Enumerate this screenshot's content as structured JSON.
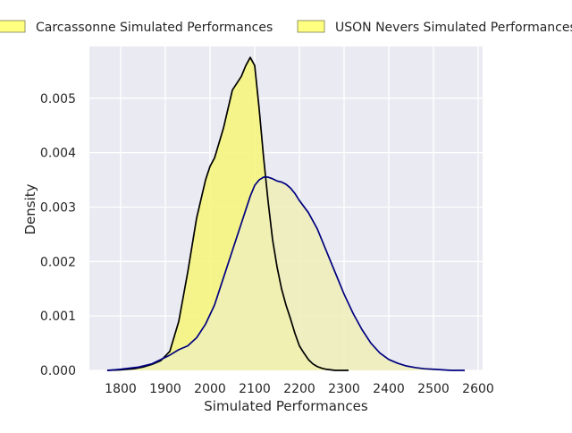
{
  "chart_data": {
    "type": "area",
    "title": "",
    "xlabel": "Simulated Performances",
    "ylabel": "Density",
    "xlim": [
      1730,
      2610
    ],
    "ylim": [
      0,
      0.00595
    ],
    "xticks": [
      1800,
      1900,
      2000,
      2100,
      2200,
      2300,
      2400,
      2500,
      2600
    ],
    "yticks": [
      0,
      0.001,
      0.002,
      0.003,
      0.004,
      0.005
    ],
    "ytick_labels": [
      "0.000",
      "0.001",
      "0.002",
      "0.003",
      "0.004",
      "0.005"
    ],
    "grid": true,
    "legend_position": "top",
    "colors": {
      "plot_background": "#eaeaf2",
      "grid": "#ffffff",
      "carcassonne_fill": "#f5f580",
      "carcassonne_line": "#000000",
      "uson_fill": "#eeeeb8",
      "uson_line": "#000080",
      "legend_swatch": "#ffff80"
    },
    "series": [
      {
        "name": "Carcassonne Simulated Performances",
        "x": [
          1770,
          1800,
          1830,
          1850,
          1870,
          1890,
          1910,
          1930,
          1950,
          1970,
          1990,
          2000,
          2010,
          2030,
          2050,
          2070,
          2080,
          2090,
          2100,
          2110,
          2120,
          2130,
          2140,
          2150,
          2160,
          2170,
          2180,
          2190,
          2200,
          2210,
          2220,
          2230,
          2240,
          2250,
          2260,
          2270,
          2280,
          2290,
          2300,
          2310
        ],
        "y": [
          0.0,
          1e-05,
          3e-05,
          6e-05,
          0.00011,
          0.00018,
          0.00035,
          0.0009,
          0.0018,
          0.0028,
          0.0035,
          0.00375,
          0.0039,
          0.00445,
          0.00515,
          0.0054,
          0.0056,
          0.00575,
          0.0056,
          0.0048,
          0.0039,
          0.0031,
          0.0024,
          0.0019,
          0.0015,
          0.0012,
          0.00095,
          0.00068,
          0.00045,
          0.00032,
          0.0002,
          0.00012,
          7e-05,
          4e-05,
          2e-05,
          1e-05,
          0.0,
          0.0,
          0.0,
          0.0
        ]
      },
      {
        "name": "USON Nevers Simulated Performances",
        "x": [
          1770,
          1800,
          1840,
          1870,
          1890,
          1910,
          1930,
          1950,
          1970,
          1990,
          2010,
          2030,
          2050,
          2070,
          2090,
          2100,
          2110,
          2120,
          2130,
          2140,
          2150,
          2160,
          2170,
          2180,
          2190,
          2200,
          2220,
          2240,
          2260,
          2280,
          2300,
          2320,
          2340,
          2360,
          2380,
          2400,
          2420,
          2440,
          2460,
          2480,
          2500,
          2520,
          2540,
          2570
        ],
        "y": [
          0.0,
          2e-05,
          6e-05,
          0.00012,
          0.0002,
          0.00028,
          0.00038,
          0.00045,
          0.0006,
          0.00085,
          0.0012,
          0.0017,
          0.0022,
          0.0027,
          0.0032,
          0.0034,
          0.0035,
          0.00355,
          0.00355,
          0.00352,
          0.00348,
          0.00346,
          0.00342,
          0.00335,
          0.00325,
          0.00312,
          0.0029,
          0.0026,
          0.0022,
          0.0018,
          0.0014,
          0.00105,
          0.00075,
          0.0005,
          0.00032,
          0.0002,
          0.00013,
          8e-05,
          5e-05,
          3e-05,
          2e-05,
          1e-05,
          0.0,
          0.0
        ]
      }
    ]
  }
}
